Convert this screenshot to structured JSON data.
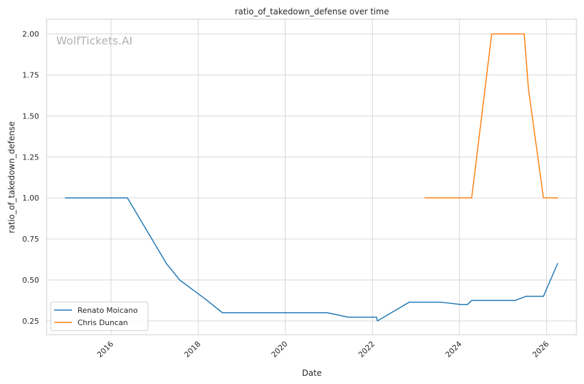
{
  "chart_data": {
    "type": "line",
    "title": "ratio_of_takedown_defense over time",
    "xlabel": "Date",
    "ylabel": "ratio_of_takedown_defense",
    "watermark": "WolfTickets.AI",
    "x_tick_labels": [
      "2016",
      "2018",
      "2020",
      "2022",
      "2024",
      "2026"
    ],
    "y_tick_labels": [
      "0.25",
      "0.50",
      "0.75",
      "1.00",
      "1.25",
      "1.50",
      "1.75",
      "2.00"
    ],
    "y_ticks": [
      0.25,
      0.5,
      0.75,
      1.0,
      1.25,
      1.5,
      1.75,
      2.0
    ],
    "xlim": [
      "2014-07-09",
      "2026-09-09"
    ],
    "ylim": [
      0.166,
      2.09
    ],
    "grid": true,
    "legend_position": "lower-left",
    "series": [
      {
        "name": "Renato Moicano",
        "color": "#1f77b4",
        "points": [
          [
            "2014-12-13",
            1.0
          ],
          [
            "2016-05-17",
            1.0
          ],
          [
            "2017-04-09",
            0.6
          ],
          [
            "2017-07-29",
            0.5
          ],
          [
            "2018-03-17",
            0.375
          ],
          [
            "2018-07-22",
            0.3
          ],
          [
            "2020-12-19",
            0.3
          ],
          [
            "2021-06-12",
            0.273
          ],
          [
            "2022-02-05",
            0.273
          ],
          [
            "2022-02-12",
            0.25
          ],
          [
            "2022-11-05",
            0.364
          ],
          [
            "2023-08-05",
            0.364
          ],
          [
            "2024-01-13",
            0.35
          ],
          [
            "2024-03-09",
            0.35
          ],
          [
            "2024-04-13",
            0.375
          ],
          [
            "2025-04-12",
            0.375
          ],
          [
            "2025-07-12",
            0.4
          ],
          [
            "2025-12-06",
            0.4
          ],
          [
            "2026-04-04",
            0.6
          ]
        ]
      },
      {
        "name": "Chris Duncan",
        "color": "#ff7f0e",
        "points": [
          [
            "2023-03-18",
            1.0
          ],
          [
            "2024-04-13",
            1.0
          ],
          [
            "2024-09-28",
            2.0
          ],
          [
            "2025-06-28",
            2.0
          ],
          [
            "2025-08-02",
            1.667
          ],
          [
            "2025-12-06",
            1.0
          ],
          [
            "2026-04-04",
            1.0
          ]
        ]
      }
    ]
  }
}
